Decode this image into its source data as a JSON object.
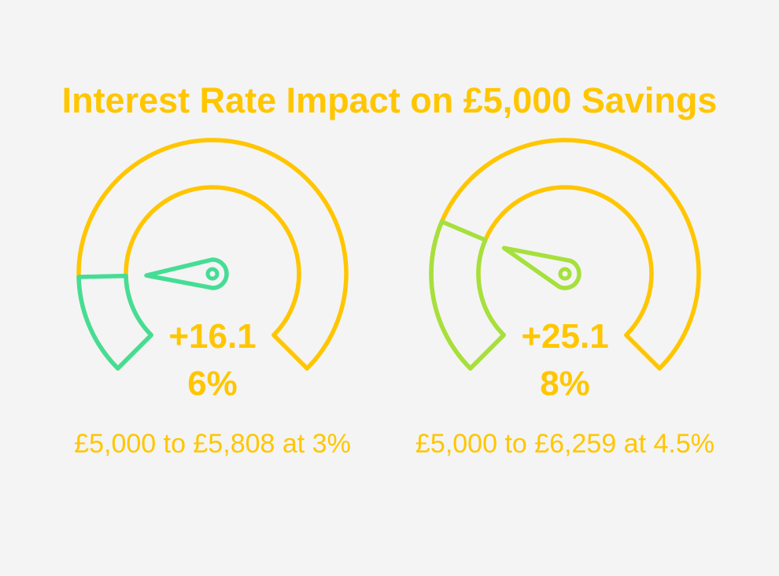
{
  "title": "Interest Rate Impact on £5,000 Savings",
  "chart_data": [
    {
      "type": "gauge",
      "values": [
        16.16
      ],
      "value_labels": [
        "+16.16%"
      ],
      "caption": "£5,000 to £5,808 at 3%",
      "ylim": [
        0,
        100
      ],
      "color": "#45dd96",
      "track_color": "#ffc600"
    },
    {
      "type": "gauge",
      "values": [
        25.18
      ],
      "value_labels": [
        "+25.18%"
      ],
      "caption": "£5,000 to £6,259 at 4.5%",
      "ylim": [
        0,
        100
      ],
      "color": "#a6e03c",
      "track_color": "#ffc600"
    }
  ]
}
